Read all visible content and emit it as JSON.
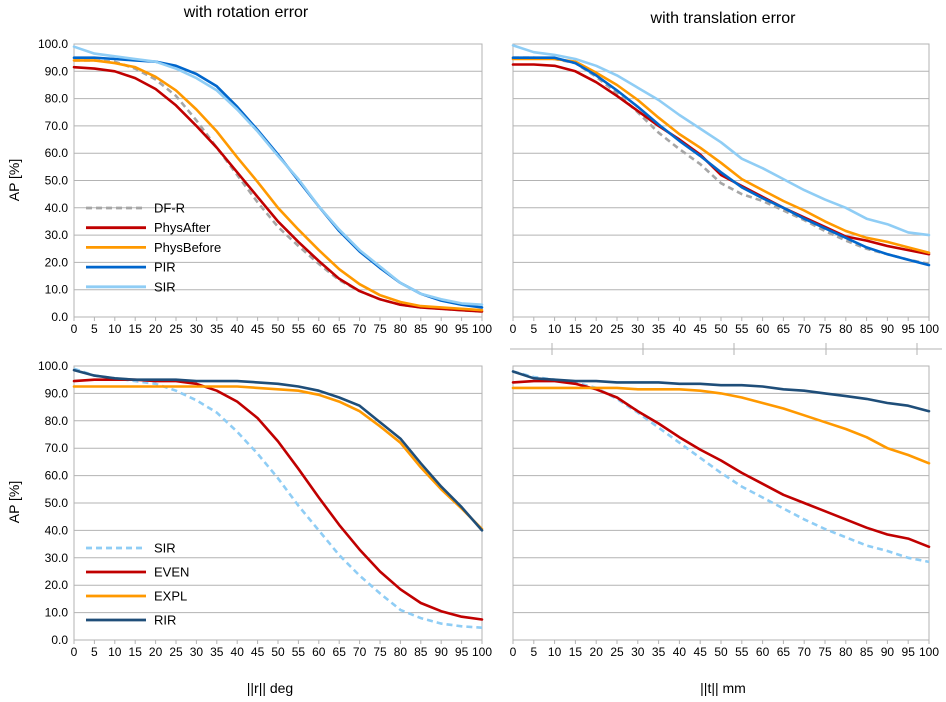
{
  "figure": {
    "top_titles": [
      "with rotation error",
      "with translation error"
    ],
    "bottom_xlabels": [
      "||r|| deg",
      "||t|| mm"
    ]
  },
  "chart_data": [
    {
      "type": "line",
      "title": "with rotation error",
      "xlabel": "",
      "ylabel": "AP [%]",
      "xlim": [
        0,
        100
      ],
      "ylim": [
        0,
        100
      ],
      "x": [
        0,
        5,
        10,
        15,
        20,
        25,
        30,
        35,
        40,
        45,
        50,
        55,
        60,
        65,
        70,
        75,
        80,
        85,
        90,
        95,
        100
      ],
      "xtick_labels": [
        "0",
        "5",
        "10",
        "15",
        "20",
        "25",
        "30",
        "35",
        "40",
        "45",
        "50",
        "55",
        "60",
        "65",
        "70",
        "75",
        "80",
        "85",
        "90",
        "95",
        "100"
      ],
      "ytick_labels": [
        "0.0",
        "10.0",
        "20.0",
        "30.0",
        "40.0",
        "50.0",
        "60.0",
        "70.0",
        "80.0",
        "90.0",
        "100.0"
      ],
      "legend": "inside bottom-left",
      "series": [
        {
          "name": "DF-R",
          "color": "#a6a6a6",
          "dashed": true,
          "values": [
            94,
            94,
            93.5,
            91,
            87,
            81,
            72,
            62,
            52,
            42,
            33,
            26,
            19.5,
            13.5,
            9.5,
            6.5,
            4.5,
            3.5,
            3,
            2.5,
            2
          ]
        },
        {
          "name": "PhysAfter",
          "color": "#c00000",
          "dashed": false,
          "values": [
            91.5,
            91,
            90,
            87.5,
            83.5,
            77.5,
            70,
            62,
            53,
            44,
            35,
            27.5,
            20.5,
            14,
            9.5,
            6.5,
            4.5,
            3.5,
            3,
            2.5,
            2
          ]
        },
        {
          "name": "PhysBefore",
          "color": "#ff9900",
          "dashed": false,
          "values": [
            94,
            94,
            93,
            91.5,
            88,
            83,
            76,
            68,
            58.5,
            49.5,
            40,
            32,
            24.5,
            17.5,
            12,
            8,
            5.5,
            4,
            3.5,
            3,
            2.5
          ]
        },
        {
          "name": "PIR",
          "color": "#0066cc",
          "dashed": false,
          "values": [
            95,
            95,
            94.5,
            94,
            93.5,
            92,
            89,
            84.5,
            77,
            68.5,
            59.5,
            50,
            40.5,
            31.5,
            24,
            18,
            12.5,
            8.5,
            6,
            4.5,
            3.5
          ]
        },
        {
          "name": "SIR",
          "color": "#8fcdf5",
          "dashed": false,
          "values": [
            99,
            96.5,
            95.5,
            94.5,
            93.5,
            91,
            87.5,
            83,
            76,
            68,
            59,
            50.5,
            40.5,
            32,
            24.5,
            18.5,
            12.5,
            8.5,
            6.5,
            5,
            4.5
          ]
        }
      ]
    },
    {
      "type": "line",
      "title": "with translation error",
      "xlabel": "",
      "ylabel": "",
      "xlim": [
        0,
        100
      ],
      "ylim": [
        0,
        100
      ],
      "x": [
        0,
        5,
        10,
        15,
        20,
        25,
        30,
        35,
        40,
        45,
        50,
        55,
        60,
        65,
        70,
        75,
        80,
        85,
        90,
        95,
        100
      ],
      "xtick_labels": [
        "0",
        "5",
        "10",
        "15",
        "20",
        "25",
        "30",
        "35",
        "40",
        "45",
        "50",
        "55",
        "60",
        "65",
        "70",
        "75",
        "80",
        "85",
        "90",
        "95",
        "100"
      ],
      "legend": "none",
      "series": [
        {
          "name": "DF-R",
          "color": "#a6a6a6",
          "dashed": true,
          "values": [
            95,
            95,
            94.5,
            93,
            88,
            82,
            75,
            67.5,
            61.5,
            56,
            49,
            45,
            42.5,
            39,
            35.5,
            31.5,
            28,
            25,
            23,
            21,
            19.5
          ]
        },
        {
          "name": "PhysAfter",
          "color": "#c00000",
          "dashed": false,
          "values": [
            92.5,
            92.5,
            92,
            90,
            86,
            81,
            75.5,
            70,
            65,
            59.5,
            52,
            48,
            44,
            40,
            36.5,
            33,
            29.5,
            28,
            26,
            24.5,
            23
          ]
        },
        {
          "name": "PhysBefore",
          "color": "#ff9900",
          "dashed": false,
          "values": [
            94.5,
            94.5,
            94.5,
            93.5,
            89.5,
            85,
            79.5,
            73,
            67,
            62,
            56.5,
            50.5,
            46.5,
            42.5,
            39,
            35,
            31.5,
            29,
            27.5,
            25.5,
            23.5
          ]
        },
        {
          "name": "PIR",
          "color": "#0066cc",
          "dashed": false,
          "values": [
            95,
            95,
            95,
            93,
            88.5,
            83,
            77,
            70.5,
            64.5,
            59,
            53,
            47.5,
            43.5,
            40,
            36,
            32.5,
            29,
            25.5,
            23,
            21,
            19
          ]
        },
        {
          "name": "SIR",
          "color": "#8fcdf5",
          "dashed": false,
          "values": [
            99.5,
            97,
            96,
            94.5,
            92,
            88.5,
            84,
            79.5,
            74,
            69,
            64,
            58,
            54.5,
            50.5,
            46.5,
            43,
            40,
            36,
            34,
            31,
            30
          ]
        }
      ]
    },
    {
      "type": "line",
      "title": "",
      "xlabel": "||r|| deg",
      "ylabel": "AP [%]",
      "xlim": [
        0,
        100
      ],
      "ylim": [
        0,
        100
      ],
      "x": [
        0,
        5,
        10,
        15,
        20,
        25,
        30,
        35,
        40,
        45,
        50,
        55,
        60,
        65,
        70,
        75,
        80,
        85,
        90,
        95,
        100
      ],
      "xtick_labels": [
        "0",
        "5",
        "10",
        "15",
        "20",
        "25",
        "30",
        "35",
        "40",
        "45",
        "50",
        "55",
        "60",
        "65",
        "70",
        "75",
        "80",
        "85",
        "90",
        "95",
        "100"
      ],
      "ytick_labels": [
        "0.0",
        "10.0",
        "20.0",
        "30.0",
        "40.0",
        "50.0",
        "60.0",
        "70.0",
        "80.0",
        "90.0",
        "100.0"
      ],
      "legend": "inside bottom-left",
      "series": [
        {
          "name": "SIR",
          "color": "#8fcdf5",
          "dashed": true,
          "values": [
            99,
            96.5,
            95.5,
            94.5,
            93.5,
            91,
            87.5,
            83,
            76,
            68,
            59,
            49,
            40,
            31,
            23.5,
            17,
            11,
            8,
            6,
            5,
            4.5
          ]
        },
        {
          "name": "EVEN",
          "color": "#c00000",
          "dashed": false,
          "values": [
            94.5,
            95,
            95,
            95,
            94.5,
            94.5,
            93.5,
            91,
            87,
            81,
            72.5,
            62.5,
            52,
            42,
            33,
            25,
            18.5,
            13.5,
            10.5,
            8.5,
            7.5
          ]
        },
        {
          "name": "EXPL",
          "color": "#ff9900",
          "dashed": false,
          "values": [
            92.5,
            92.5,
            92.5,
            92.5,
            92.5,
            92.5,
            92.5,
            92.5,
            92.5,
            92,
            91.5,
            91,
            89.5,
            87,
            83.5,
            78,
            72,
            63,
            55,
            48,
            40.5
          ]
        },
        {
          "name": "RIR",
          "color": "#1f4e79",
          "dashed": false,
          "values": [
            98.5,
            96.5,
            95.5,
            95,
            95,
            95,
            94.5,
            94.5,
            94.5,
            94,
            93.5,
            92.5,
            91,
            88.5,
            85.5,
            79.5,
            73.5,
            64.5,
            56,
            48.5,
            40
          ]
        }
      ]
    },
    {
      "type": "line",
      "title": "",
      "xlabel": "||t|| mm",
      "ylabel": "",
      "xlim": [
        0,
        100
      ],
      "ylim": [
        0,
        100
      ],
      "x": [
        0,
        5,
        10,
        15,
        20,
        25,
        30,
        35,
        40,
        45,
        50,
        55,
        60,
        65,
        70,
        75,
        80,
        85,
        90,
        95,
        100
      ],
      "xtick_labels": [
        "0",
        "5",
        "10",
        "15",
        "20",
        "25",
        "30",
        "35",
        "40",
        "45",
        "50",
        "55",
        "60",
        "65",
        "70",
        "75",
        "80",
        "85",
        "90",
        "95",
        "100"
      ],
      "legend": "none",
      "series": [
        {
          "name": "SIR",
          "color": "#8fcdf5",
          "dashed": true,
          "values": [
            98,
            96,
            95,
            94,
            92,
            88,
            83,
            77.5,
            72,
            66.5,
            61,
            56,
            52,
            48,
            44,
            40.5,
            37.5,
            34.5,
            32.5,
            30,
            28.5
          ]
        },
        {
          "name": "EVEN",
          "color": "#c00000",
          "dashed": false,
          "values": [
            94,
            94.5,
            94.5,
            93.5,
            91.5,
            88.5,
            83.5,
            79,
            74,
            69.5,
            65.5,
            61,
            57,
            53,
            50,
            47,
            44,
            41,
            38.5,
            37,
            34
          ]
        },
        {
          "name": "EXPL",
          "color": "#ff9900",
          "dashed": false,
          "values": [
            92,
            92,
            92,
            92,
            92,
            92,
            91.5,
            91.5,
            91.5,
            91,
            90,
            88.5,
            86.5,
            84.5,
            82,
            79.5,
            77,
            74,
            70,
            67.5,
            64.5
          ]
        },
        {
          "name": "RIR",
          "color": "#1f4e79",
          "dashed": false,
          "values": [
            98,
            95.5,
            95,
            94.5,
            94.5,
            94,
            94,
            94,
            93.5,
            93.5,
            93,
            93,
            92.5,
            91.5,
            91,
            90,
            89,
            88,
            86.5,
            85.5,
            83.5
          ]
        }
      ]
    }
  ]
}
